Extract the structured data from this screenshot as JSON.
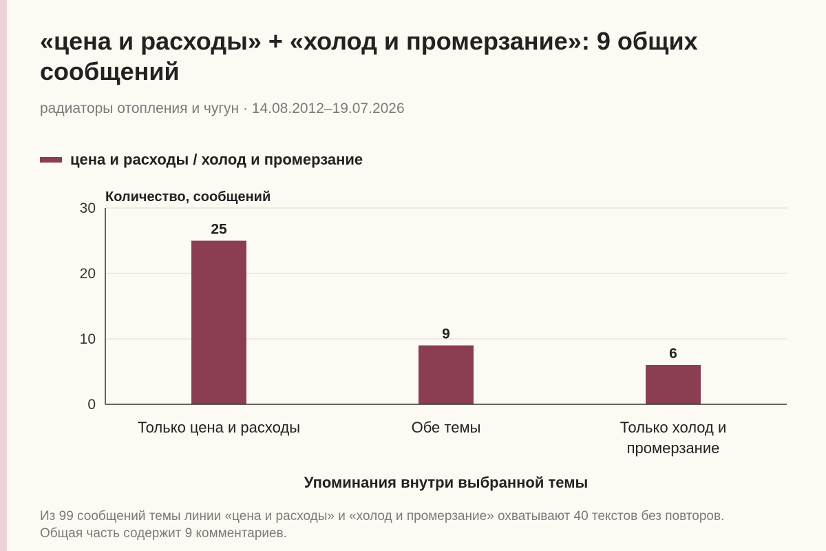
{
  "header": {
    "title": "«цена и расходы» + «холод и промерзание»: 9 общих сообщений",
    "subtitle": "радиаторы отопления и чугун · 14.08.2012–19.07.2026"
  },
  "footnote": "Из 99 сообщений темы линии «цена и расходы» и «холод и промерзание» охватывают 40 текстов без повторов. Общая часть содержит 9 комментариев.",
  "colors": {
    "bar": "#8b3e52",
    "grid": "#d9d9d9",
    "axis": "#333333"
  },
  "chart_data": {
    "type": "bar",
    "categories": [
      "Только цена и расходы",
      "Обе темы",
      "Только холод и промерзание"
    ],
    "series": [
      {
        "name": "цена и расходы / холод и промерзание",
        "values": [
          25,
          9,
          6
        ]
      }
    ],
    "ylabel": "Количество, сообщений",
    "xlabel": "Упоминания внутри выбранной темы",
    "ylim": [
      0,
      30
    ],
    "yticks": [
      0,
      10,
      20,
      30
    ],
    "grid": true,
    "legend": "top-left"
  }
}
